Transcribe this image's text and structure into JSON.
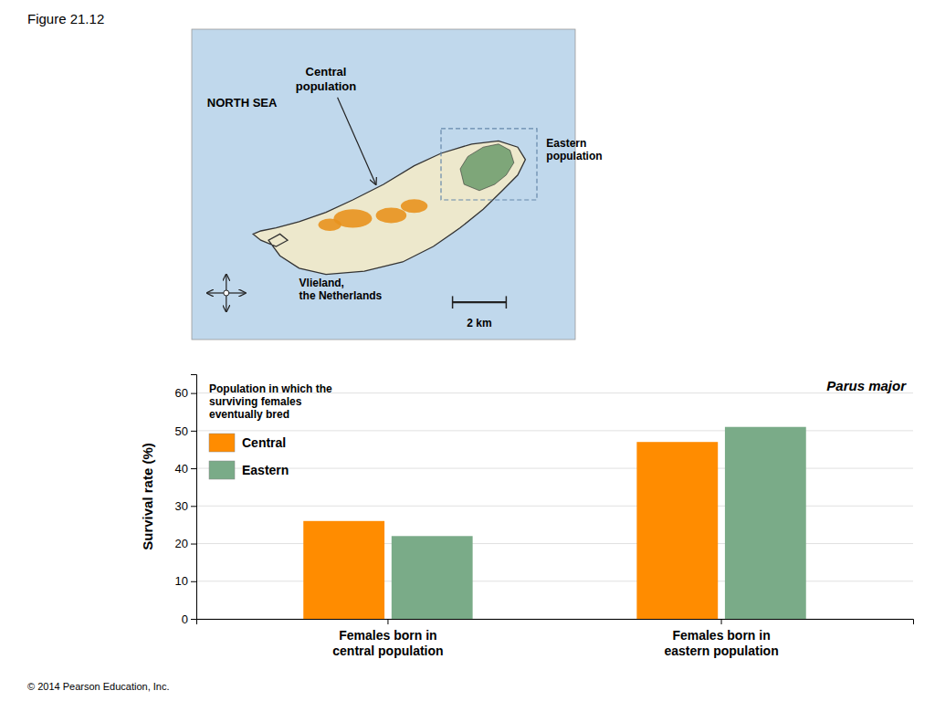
{
  "chart_data": {
    "type": "bar",
    "title": "Figure 21.12",
    "categories": [
      "Females born in\ncentral population",
      "Females born in\neastern population"
    ],
    "series": [
      {
        "name": "Central",
        "color": "#FF8C00",
        "values": [
          26,
          47
        ]
      },
      {
        "name": "Eastern",
        "color": "#7AAB88",
        "values": [
          22,
          51
        ]
      }
    ],
    "ylabel": "Survival rate (%)",
    "ylim": [
      0,
      65
    ],
    "yticks": [
      0,
      10,
      20,
      30,
      40,
      50,
      60
    ],
    "grid": true,
    "legend": "upper-left",
    "legend_title": "Population in which the\nsurviving females\neventually bred",
    "annotations": [
      "Central\npopulation",
      "NORTH SEA",
      "Eastern\npopulation",
      "Vlieland,\nthe Netherlands",
      "2 km",
      "Parus major",
      "© 2014 Pearson Education, Inc."
    ]
  }
}
